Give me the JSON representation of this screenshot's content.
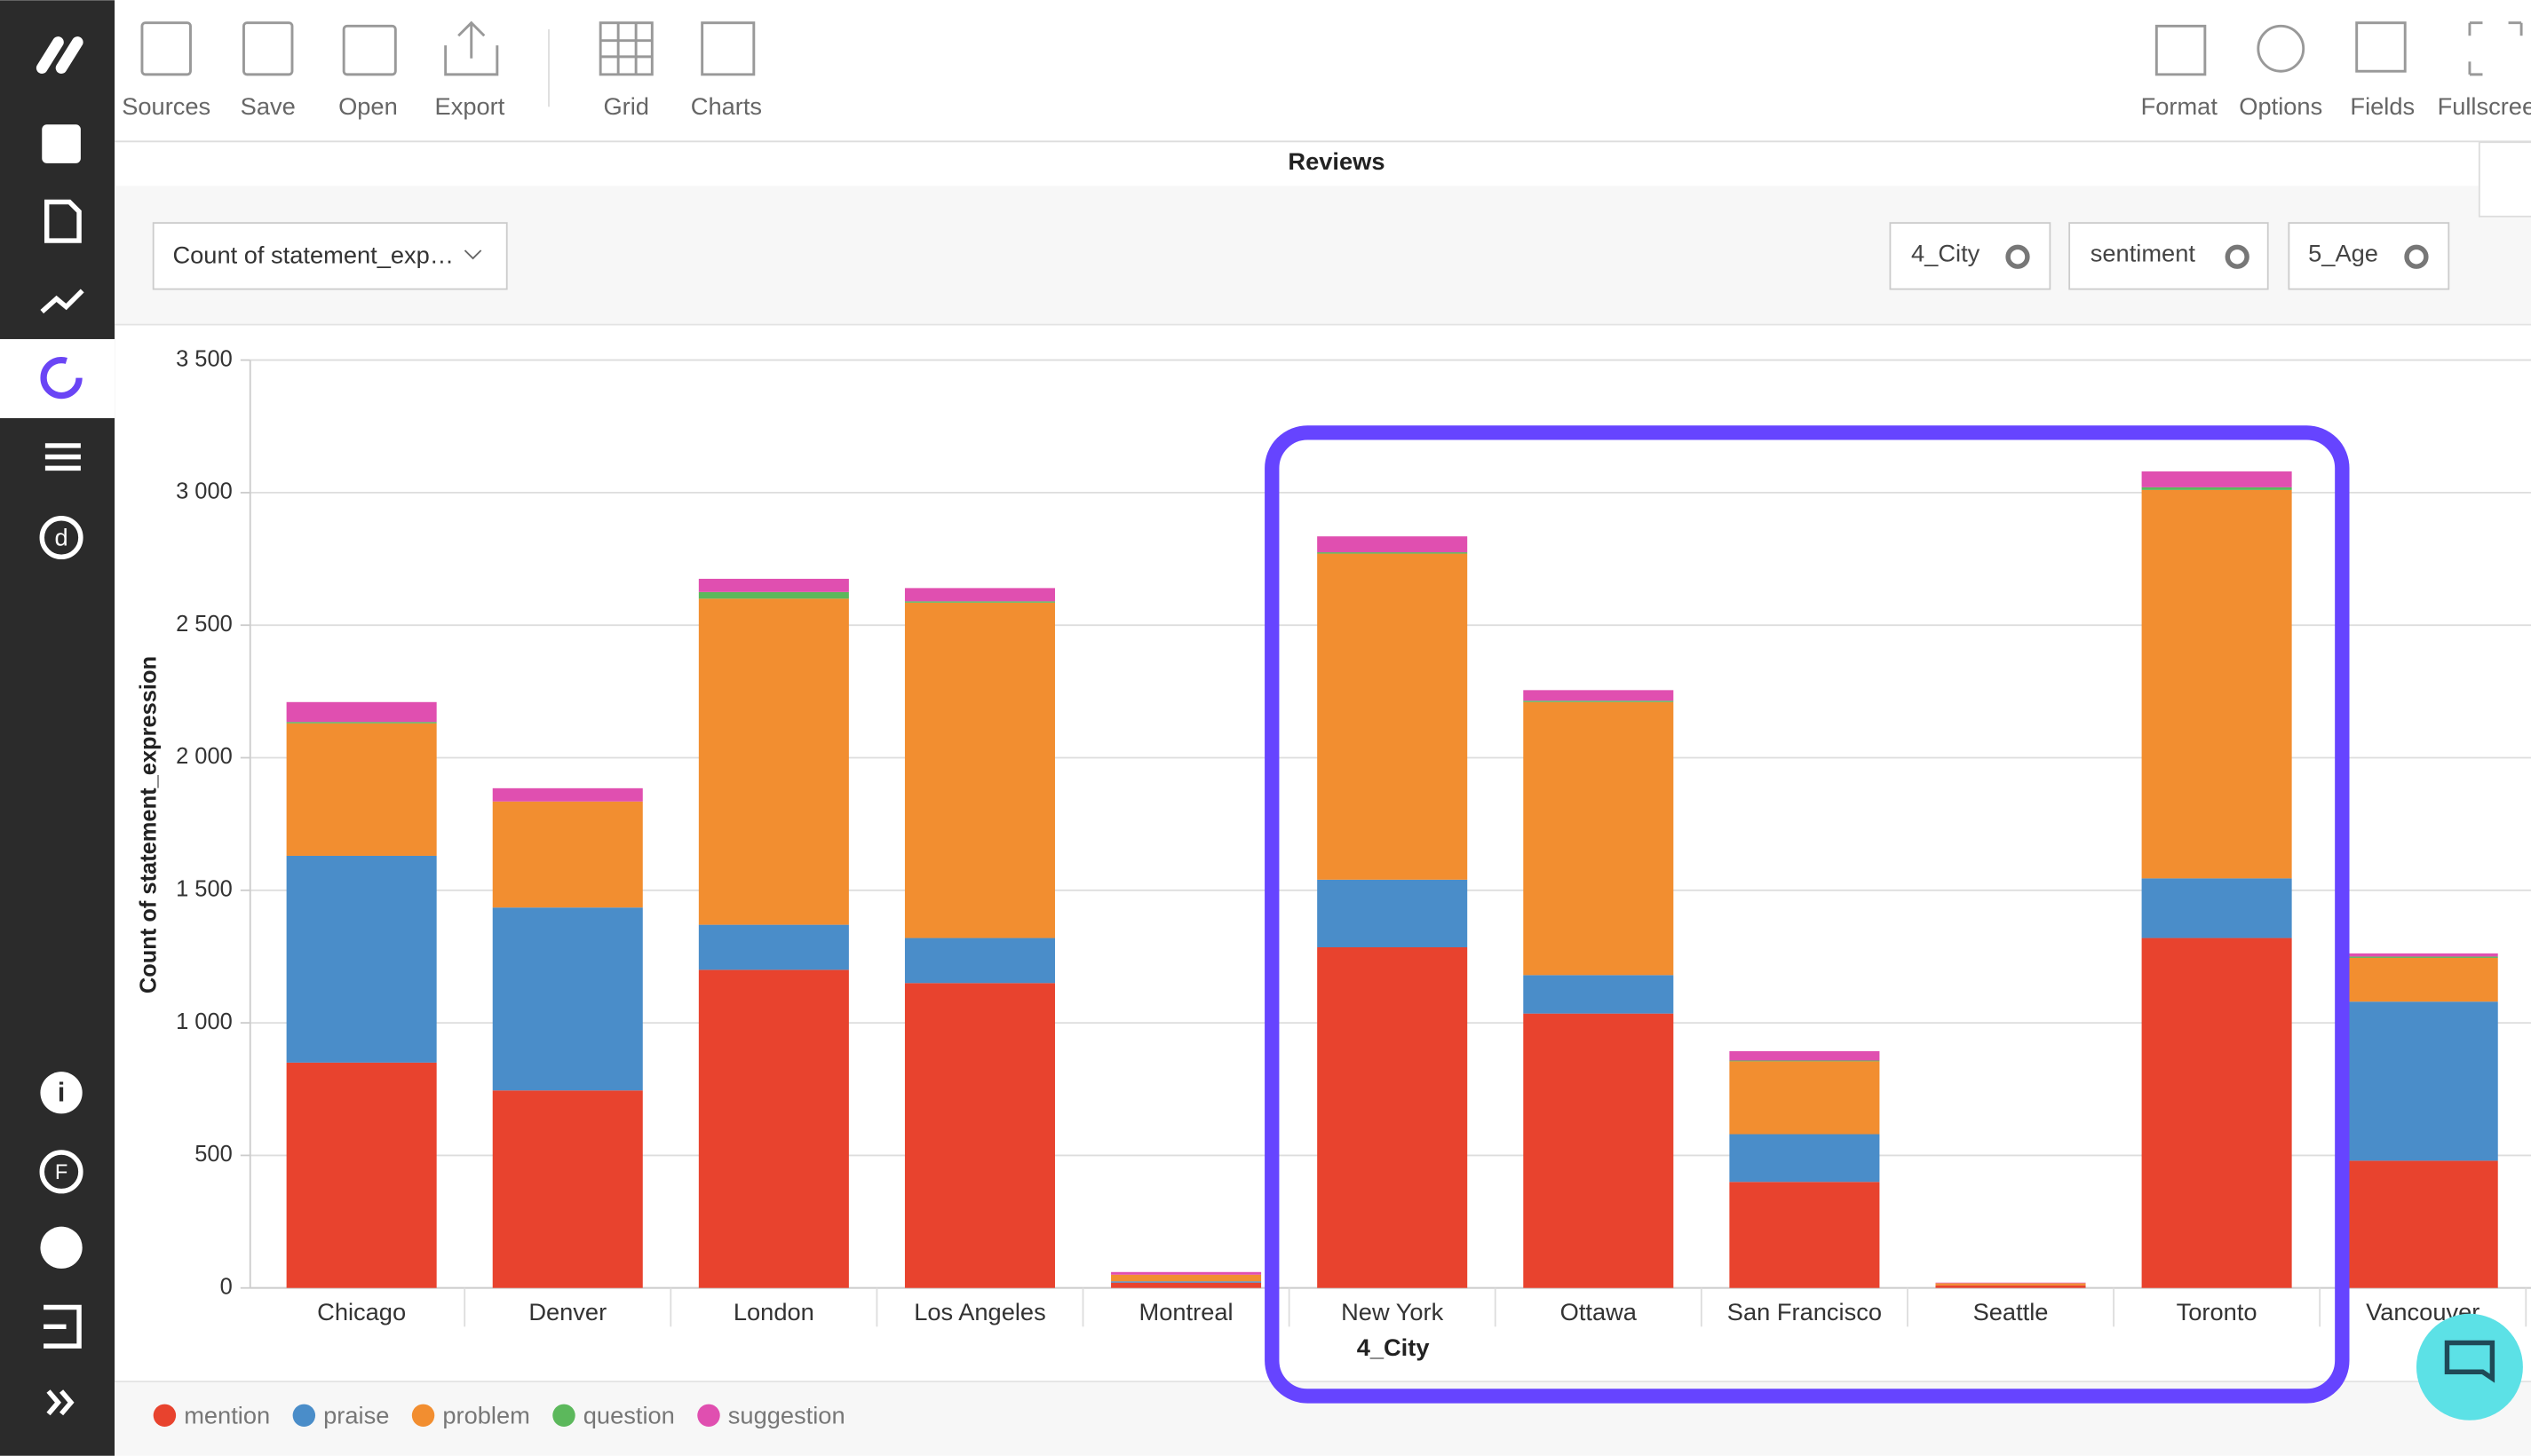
{
  "toolbar": [
    "Sources",
    "Save",
    "Open",
    "Export",
    "Grid",
    "Charts",
    "Format",
    "Options",
    "Fields",
    "Fullscreen"
  ],
  "header": {
    "title": "Reviews",
    "measure": "Count of statement_exp…",
    "filters": [
      "4_City",
      "sentiment",
      "5_Age"
    ]
  },
  "chart_data": {
    "type": "stacked_bar",
    "x_label": "4_City",
    "y_label": "Count of statement_expression",
    "categories": [
      "Chicago",
      "Denver",
      "London",
      "Los Angeles",
      "Montreal",
      "New York",
      "Ottawa",
      "San Francisco",
      "Seattle",
      "Toronto",
      "Vancouver"
    ],
    "series": [
      {
        "name": "mention",
        "color": "#e8432e",
        "values": [
          850,
          745,
          1200,
          1150,
          20,
          1285,
          1035,
          400,
          10,
          1320,
          480
        ]
      },
      {
        "name": "praise",
        "color": "#4a8dc9",
        "values": [
          780,
          690,
          170,
          170,
          5,
          255,
          145,
          180,
          0,
          225,
          600
        ]
      },
      {
        "name": "problem",
        "color": "#f28e30",
        "values": [
          500,
          400,
          1230,
          1265,
          25,
          1230,
          1030,
          275,
          8,
          1465,
          165
        ]
      },
      {
        "name": "question",
        "color": "#5cb85c",
        "values": [
          5,
          0,
          25,
          5,
          0,
          5,
          5,
          3,
          0,
          10,
          5
        ]
      },
      {
        "name": "suggestion",
        "color": "#e04fb0",
        "values": [
          75,
          50,
          50,
          50,
          10,
          60,
          40,
          35,
          2,
          60,
          12
        ]
      }
    ],
    "ylim": [
      0,
      3500
    ],
    "yticks": [
      0,
      500,
      {
        "value": 1000,
        "label": "1 000"
      },
      {
        "value": 1500,
        "label": "1 500"
      },
      {
        "value": 2000,
        "label": "2 000"
      },
      {
        "value": 2500,
        "label": "2 500"
      },
      {
        "value": 3000,
        "label": "3 000"
      },
      {
        "value": 3500,
        "label": "3 500"
      }
    ],
    "grid": true
  }
}
